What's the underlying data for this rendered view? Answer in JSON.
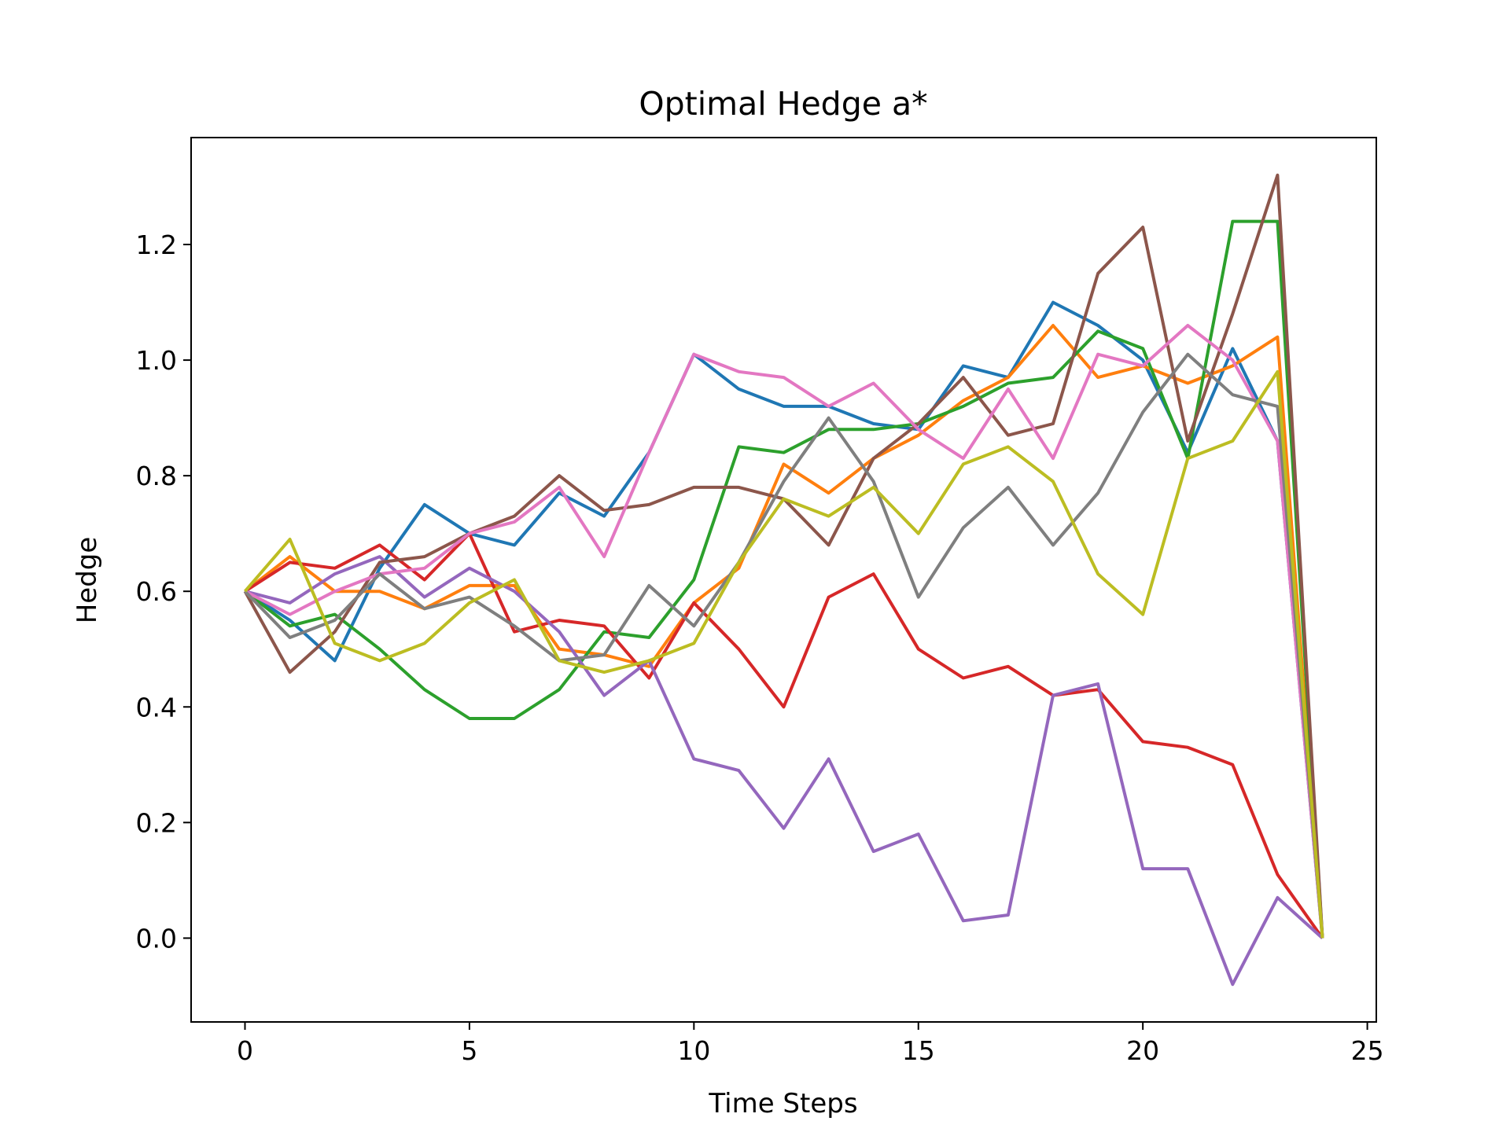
{
  "chart_data": {
    "type": "line",
    "title": "Optimal Hedge a*",
    "xlabel": "Time Steps",
    "ylabel": "Hedge",
    "xlim": [
      -1.2,
      25.2
    ],
    "ylim": [
      -0.145,
      1.385
    ],
    "xticks": [
      0,
      5,
      10,
      15,
      20,
      25
    ],
    "yticks": [
      0.0,
      0.2,
      0.4,
      0.6,
      0.8,
      1.0,
      1.2
    ],
    "xtick_labels": [
      "0",
      "5",
      "10",
      "15",
      "20",
      "25"
    ],
    "ytick_labels": [
      "0.0",
      "0.2",
      "0.4",
      "0.6",
      "0.8",
      "1.0",
      "1.2"
    ],
    "grid": false,
    "x": [
      0,
      1,
      2,
      3,
      4,
      5,
      6,
      7,
      8,
      9,
      10,
      11,
      12,
      13,
      14,
      15,
      16,
      17,
      18,
      19,
      20,
      21,
      22,
      23,
      24
    ],
    "series": [
      {
        "color": "#1f77b4",
        "values": [
          0.6,
          0.55,
          0.48,
          0.64,
          0.75,
          0.7,
          0.68,
          0.77,
          0.73,
          0.84,
          1.01,
          0.95,
          0.92,
          0.92,
          0.89,
          0.88,
          0.99,
          0.97,
          1.1,
          1.06,
          1.0,
          0.84,
          1.02,
          0.86,
          0.0
        ]
      },
      {
        "color": "#ff7f0e",
        "values": [
          0.6,
          0.66,
          0.6,
          0.6,
          0.57,
          0.61,
          0.61,
          0.5,
          0.49,
          0.47,
          0.58,
          0.64,
          0.82,
          0.77,
          0.83,
          0.87,
          0.93,
          0.97,
          1.06,
          0.97,
          0.99,
          0.96,
          0.99,
          1.04,
          0.0
        ]
      },
      {
        "color": "#2ca02c",
        "values": [
          0.6,
          0.54,
          0.56,
          0.5,
          0.43,
          0.38,
          0.38,
          0.43,
          0.53,
          0.52,
          0.62,
          0.85,
          0.84,
          0.88,
          0.88,
          0.89,
          0.92,
          0.96,
          0.97,
          1.05,
          1.02,
          0.83,
          1.24,
          1.24,
          0.0
        ]
      },
      {
        "color": "#d62728",
        "values": [
          0.6,
          0.65,
          0.64,
          0.68,
          0.62,
          0.7,
          0.53,
          0.55,
          0.54,
          0.45,
          0.58,
          0.5,
          0.4,
          0.59,
          0.63,
          0.5,
          0.45,
          0.47,
          0.42,
          0.43,
          0.34,
          0.33,
          0.3,
          0.11,
          0.0
        ]
      },
      {
        "color": "#9467bd",
        "values": [
          0.6,
          0.58,
          0.63,
          0.66,
          0.59,
          0.64,
          0.6,
          0.53,
          0.42,
          0.48,
          0.31,
          0.29,
          0.19,
          0.31,
          0.15,
          0.18,
          0.03,
          0.04,
          0.42,
          0.44,
          0.12,
          0.12,
          -0.08,
          0.07,
          0.0
        ]
      },
      {
        "color": "#8c564b",
        "values": [
          0.6,
          0.46,
          0.53,
          0.65,
          0.66,
          0.7,
          0.73,
          0.8,
          0.74,
          0.75,
          0.78,
          0.78,
          0.76,
          0.68,
          0.83,
          0.89,
          0.97,
          0.87,
          0.89,
          1.15,
          1.23,
          0.86,
          1.08,
          1.32,
          0.0
        ]
      },
      {
        "color": "#e377c2",
        "values": [
          0.6,
          0.56,
          0.6,
          0.63,
          0.64,
          0.7,
          0.72,
          0.78,
          0.66,
          0.84,
          1.01,
          0.98,
          0.97,
          0.92,
          0.96,
          0.88,
          0.83,
          0.95,
          0.83,
          1.01,
          0.99,
          1.06,
          1.0,
          0.86,
          0.0
        ]
      },
      {
        "color": "#7f7f7f",
        "values": [
          0.6,
          0.52,
          0.55,
          0.63,
          0.57,
          0.59,
          0.54,
          0.48,
          0.49,
          0.61,
          0.54,
          0.65,
          0.79,
          0.9,
          0.79,
          0.59,
          0.71,
          0.78,
          0.68,
          0.77,
          0.91,
          1.01,
          0.94,
          0.92,
          0.0
        ]
      },
      {
        "color": "#bcbd22",
        "values": [
          0.6,
          0.69,
          0.51,
          0.48,
          0.51,
          0.58,
          0.62,
          0.48,
          0.46,
          0.48,
          0.51,
          0.65,
          0.76,
          0.73,
          0.78,
          0.7,
          0.82,
          0.85,
          0.79,
          0.63,
          0.56,
          0.83,
          0.86,
          0.98,
          0.0
        ]
      }
    ]
  }
}
